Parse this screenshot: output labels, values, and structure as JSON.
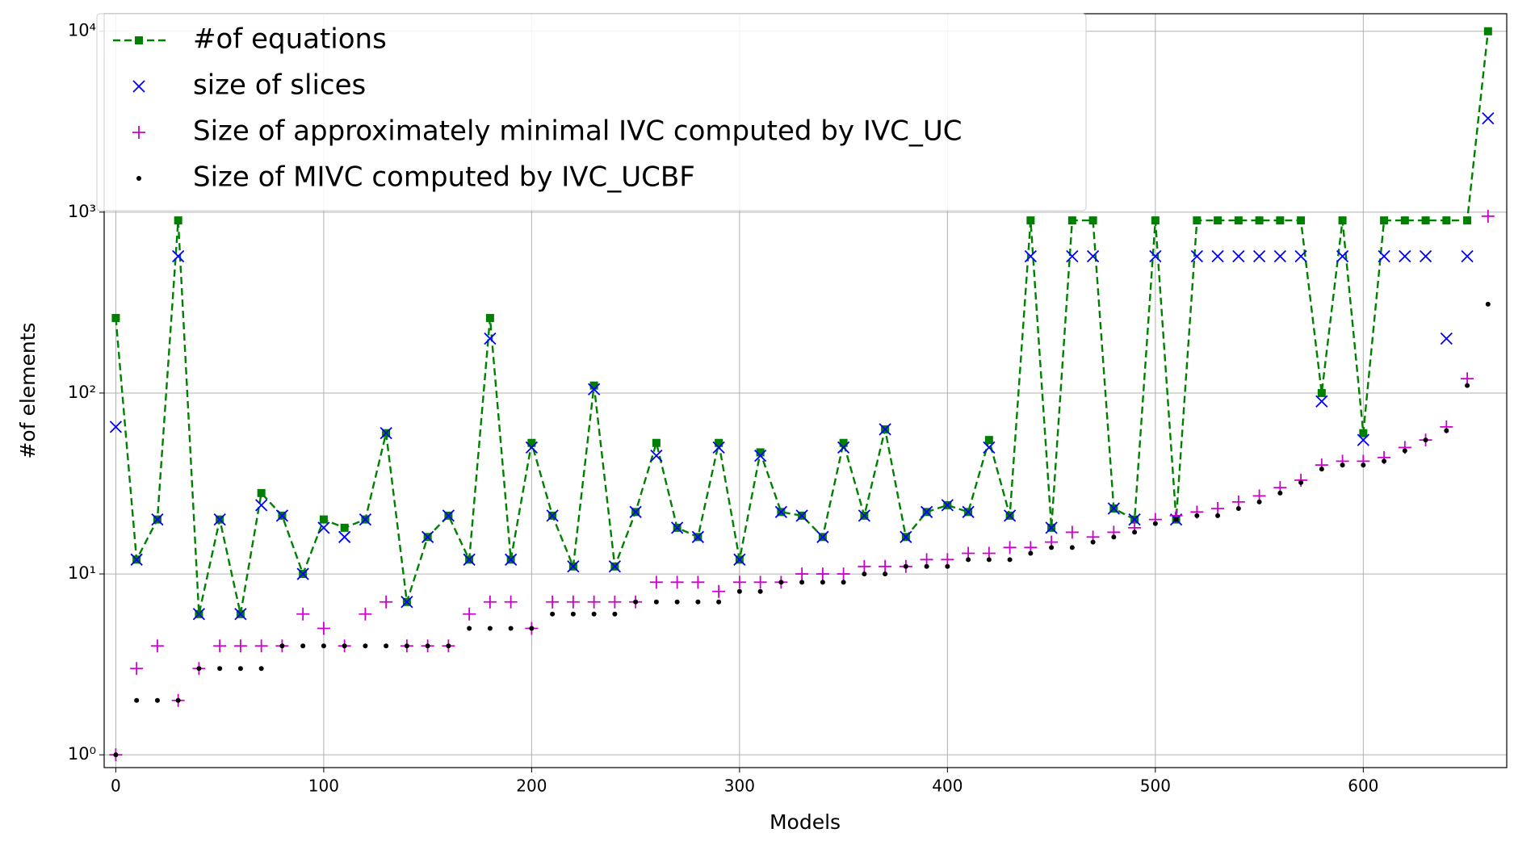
{
  "chart_data": {
    "type": "line",
    "xlabel": "Models",
    "ylabel": "#of elements",
    "log_y": true,
    "grid": true,
    "legend": "upper left",
    "xlim": [
      -5.6,
      669
    ],
    "ylim": [
      0.85,
      12500
    ],
    "xticks": [
      0,
      100,
      200,
      300,
      400,
      500,
      600
    ],
    "yticks": [
      {
        "value": 1,
        "label": "10⁰"
      },
      {
        "value": 10,
        "label": "10¹"
      },
      {
        "value": 100,
        "label": "10²"
      },
      {
        "value": 1000,
        "label": "10³"
      },
      {
        "value": 10000,
        "label": "10⁴"
      }
    ],
    "x": [
      0,
      10,
      20,
      30,
      40,
      50,
      60,
      70,
      80,
      90,
      100,
      110,
      120,
      130,
      140,
      150,
      160,
      170,
      180,
      190,
      200,
      210,
      220,
      230,
      240,
      250,
      260,
      270,
      280,
      290,
      300,
      310,
      320,
      330,
      340,
      350,
      360,
      370,
      380,
      390,
      400,
      410,
      420,
      430,
      440,
      450,
      460,
      470,
      480,
      490,
      500,
      510,
      520,
      530,
      540,
      550,
      560,
      570,
      580,
      590,
      600,
      610,
      620,
      630,
      640,
      650,
      660
    ],
    "series": [
      {
        "name": "#of equations",
        "color": "#008000",
        "marker": "square",
        "line": "dashed",
        "values": [
          260,
          12,
          20,
          900,
          6,
          20,
          6,
          28,
          21,
          10,
          20,
          18,
          20,
          60,
          7,
          16,
          21,
          12,
          260,
          12,
          53,
          21,
          11,
          110,
          11,
          22,
          53,
          18,
          16,
          53,
          12,
          47,
          22,
          21,
          16,
          53,
          21,
          63,
          16,
          22,
          24,
          22,
          55,
          21,
          900,
          18,
          900,
          900,
          23,
          20,
          900,
          20,
          900,
          900,
          900,
          900,
          900,
          900,
          100,
          900,
          60,
          900,
          900,
          900,
          900,
          900,
          10000
        ]
      },
      {
        "name": "size of slices",
        "color": "#0000ff",
        "marker": "x",
        "line": "none",
        "values": [
          65,
          12,
          20,
          570,
          6,
          20,
          6,
          24,
          21,
          10,
          18,
          16,
          20,
          60,
          7,
          16,
          21,
          12,
          200,
          12,
          50,
          21,
          11,
          105,
          11,
          22,
          45,
          18,
          16,
          50,
          12,
          45,
          22,
          21,
          16,
          50,
          21,
          63,
          16,
          22,
          24,
          22,
          50,
          21,
          570,
          18,
          570,
          570,
          23,
          20,
          570,
          20,
          570,
          570,
          570,
          570,
          570,
          570,
          90,
          570,
          55,
          570,
          570,
          570,
          200,
          570,
          3300
        ]
      },
      {
        "name": "Size of approximately minimal IVC computed by IVC_UC",
        "color": "#cc00cc",
        "marker": "plus",
        "line": "none",
        "values": [
          1,
          3,
          4,
          2,
          3,
          4,
          4,
          4,
          4,
          6,
          5,
          4,
          6,
          7,
          4,
          4,
          4,
          6,
          7,
          7,
          5,
          7,
          7,
          7,
          7,
          7,
          9,
          9,
          9,
          8,
          9,
          9,
          9,
          10,
          10,
          10,
          11,
          11,
          11,
          12,
          12,
          13,
          13,
          14,
          14,
          15,
          17,
          16,
          17,
          18,
          20,
          21,
          22,
          23,
          25,
          27,
          30,
          33,
          40,
          42,
          42,
          44,
          50,
          55,
          65,
          120,
          950
        ]
      },
      {
        "name": "Size of MIVC computed by IVC_UCBF",
        "color": "#000000",
        "marker": "dot",
        "line": "none",
        "values": [
          1,
          2,
          2,
          2,
          3,
          3,
          3,
          3,
          4,
          4,
          4,
          4,
          4,
          4,
          4,
          4,
          4,
          5,
          5,
          5,
          5,
          6,
          6,
          6,
          6,
          7,
          7,
          7,
          7,
          7,
          8,
          8,
          9,
          9,
          9,
          9,
          10,
          10,
          11,
          11,
          11,
          12,
          12,
          12,
          13,
          14,
          14,
          15,
          16,
          17,
          19,
          20,
          21,
          21,
          23,
          25,
          28,
          32,
          38,
          40,
          40,
          42,
          48,
          55,
          62,
          110,
          310
        ]
      }
    ]
  }
}
